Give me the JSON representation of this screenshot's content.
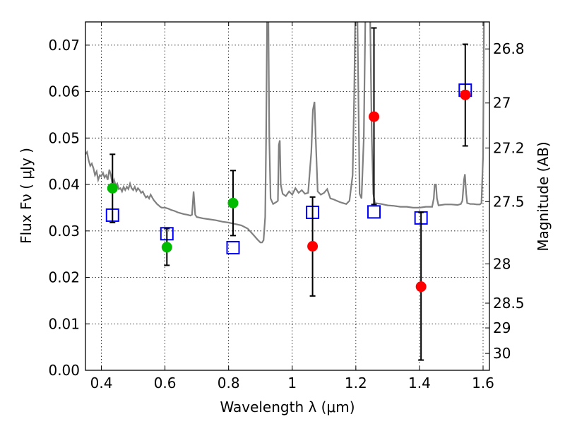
{
  "chart_data": {
    "type": "scatter",
    "title": "",
    "xlabel": "Wavelength  λ (μm)",
    "ylabel": "Flux  Fν  ( μJy )",
    "ylabel_right": "Magnitude (AB)",
    "xlim": [
      0.35,
      1.62
    ],
    "ylim": [
      0.0,
      0.075
    ],
    "grid": true,
    "x_ticks": [
      {
        "value": 0.4,
        "label": "0.4"
      },
      {
        "value": 0.6,
        "label": "0.6"
      },
      {
        "value": 0.8,
        "label": "0.8"
      },
      {
        "value": 1.0,
        "label": "1"
      },
      {
        "value": 1.2,
        "label": "1.2"
      },
      {
        "value": 1.4,
        "label": "1.4"
      },
      {
        "value": 1.6,
        "label": "1.6"
      }
    ],
    "y_ticks": [
      {
        "value": 0.0,
        "label": "0.00"
      },
      {
        "value": 0.01,
        "label": "0.01"
      },
      {
        "value": 0.02,
        "label": "0.02"
      },
      {
        "value": 0.03,
        "label": "0.03"
      },
      {
        "value": 0.04,
        "label": "0.04"
      },
      {
        "value": 0.05,
        "label": "0.05"
      },
      {
        "value": 0.06,
        "label": "0.06"
      },
      {
        "value": 0.07,
        "label": "0.07"
      }
    ],
    "right_ticks": [
      {
        "mag": 26.8,
        "label": "26.8"
      },
      {
        "mag": 27.0,
        "label": "27"
      },
      {
        "mag": 27.2,
        "label": "27.2"
      },
      {
        "mag": 27.5,
        "label": "27.5"
      },
      {
        "mag": 28.0,
        "label": "28"
      },
      {
        "mag": 28.5,
        "label": "28.5"
      },
      {
        "mag": 29.0,
        "label": "29"
      },
      {
        "mag": 30.0,
        "label": "30"
      }
    ],
    "colors": {
      "template": "#808080",
      "model": "#0000ff",
      "detected": "#00bb00",
      "nondetected": "#ff0000",
      "errorbar": "#000000"
    },
    "series": [
      {
        "marker": "circle-green",
        "points": [
          {
            "x": 0.435,
            "y": 0.0392,
            "lo": 0.0318,
            "hi": 0.0465
          },
          {
            "x": 0.606,
            "y": 0.0265,
            "lo": 0.0226,
            "hi": 0.0305
          },
          {
            "x": 0.814,
            "y": 0.036,
            "lo": 0.029,
            "hi": 0.043
          }
        ]
      },
      {
        "marker": "circle-red",
        "points": [
          {
            "x": 1.064,
            "y": 0.0267,
            "lo": 0.016,
            "hi": 0.0373
          },
          {
            "x": 1.257,
            "y": 0.0546,
            "lo": 0.0357,
            "hi": 0.0737
          },
          {
            "x": 1.405,
            "y": 0.018,
            "lo": 0.0022,
            "hi": 0.034
          },
          {
            "x": 1.544,
            "y": 0.0593,
            "lo": 0.0483,
            "hi": 0.0702
          }
        ]
      },
      {
        "marker": "square-blue",
        "points": [
          {
            "x": 0.435,
            "y": 0.0334
          },
          {
            "x": 0.606,
            "y": 0.0294
          },
          {
            "x": 0.814,
            "y": 0.0264
          },
          {
            "x": 1.064,
            "y": 0.034
          },
          {
            "x": 1.257,
            "y": 0.0341
          },
          {
            "x": 1.405,
            "y": 0.0328
          },
          {
            "x": 1.544,
            "y": 0.0603
          }
        ]
      }
    ],
    "template_spectrum": [
      [
        0.35,
        0.0465
      ],
      [
        0.355,
        0.047
      ],
      [
        0.36,
        0.0452
      ],
      [
        0.365,
        0.044
      ],
      [
        0.37,
        0.0445
      ],
      [
        0.375,
        0.0435
      ],
      [
        0.38,
        0.042
      ],
      [
        0.385,
        0.0428
      ],
      [
        0.39,
        0.041
      ],
      [
        0.395,
        0.042
      ],
      [
        0.4,
        0.0418
      ],
      [
        0.405,
        0.0425
      ],
      [
        0.41,
        0.0415
      ],
      [
        0.415,
        0.042
      ],
      [
        0.42,
        0.041
      ],
      [
        0.425,
        0.0432
      ],
      [
        0.43,
        0.042
      ],
      [
        0.435,
        0.04
      ],
      [
        0.44,
        0.041
      ],
      [
        0.445,
        0.0398
      ],
      [
        0.45,
        0.0402
      ],
      [
        0.455,
        0.039
      ],
      [
        0.46,
        0.0392
      ],
      [
        0.465,
        0.0385
      ],
      [
        0.47,
        0.0395
      ],
      [
        0.475,
        0.0388
      ],
      [
        0.48,
        0.0395
      ],
      [
        0.485,
        0.039
      ],
      [
        0.49,
        0.0402
      ],
      [
        0.495,
        0.0392
      ],
      [
        0.5,
        0.0388
      ],
      [
        0.505,
        0.0395
      ],
      [
        0.51,
        0.0386
      ],
      [
        0.515,
        0.0392
      ],
      [
        0.52,
        0.0388
      ],
      [
        0.525,
        0.0382
      ],
      [
        0.53,
        0.0385
      ],
      [
        0.535,
        0.0378
      ],
      [
        0.54,
        0.0372
      ],
      [
        0.545,
        0.0375
      ],
      [
        0.55,
        0.037
      ],
      [
        0.555,
        0.0378
      ],
      [
        0.56,
        0.0372
      ],
      [
        0.565,
        0.0366
      ],
      [
        0.57,
        0.0362
      ],
      [
        0.575,
        0.0358
      ],
      [
        0.58,
        0.0355
      ],
      [
        0.585,
        0.0352
      ],
      [
        0.59,
        0.035
      ],
      [
        0.6,
        0.035
      ],
      [
        0.61,
        0.0348
      ],
      [
        0.62,
        0.0345
      ],
      [
        0.63,
        0.0343
      ],
      [
        0.64,
        0.034
      ],
      [
        0.65,
        0.0338
      ],
      [
        0.66,
        0.0336
      ],
      [
        0.67,
        0.0335
      ],
      [
        0.68,
        0.0333
      ],
      [
        0.685,
        0.0335
      ],
      [
        0.69,
        0.0385
      ],
      [
        0.695,
        0.0335
      ],
      [
        0.7,
        0.033
      ],
      [
        0.72,
        0.0327
      ],
      [
        0.74,
        0.0325
      ],
      [
        0.76,
        0.0323
      ],
      [
        0.78,
        0.032
      ],
      [
        0.8,
        0.0318
      ],
      [
        0.82,
        0.0315
      ],
      [
        0.84,
        0.0312
      ],
      [
        0.86,
        0.0305
      ],
      [
        0.88,
        0.029
      ],
      [
        0.89,
        0.0282
      ],
      [
        0.9,
        0.0275
      ],
      [
        0.905,
        0.0275
      ],
      [
        0.91,
        0.028
      ],
      [
        0.915,
        0.033
      ],
      [
        0.918,
        0.05
      ],
      [
        0.921,
        0.076
      ],
      [
        0.925,
        0.076
      ],
      [
        0.928,
        0.05
      ],
      [
        0.932,
        0.037
      ],
      [
        0.94,
        0.0358
      ],
      [
        0.95,
        0.0362
      ],
      [
        0.955,
        0.0365
      ],
      [
        0.958,
        0.0485
      ],
      [
        0.961,
        0.0495
      ],
      [
        0.964,
        0.04
      ],
      [
        0.97,
        0.038
      ],
      [
        0.98,
        0.0375
      ],
      [
        0.99,
        0.0385
      ],
      [
        1.0,
        0.0378
      ],
      [
        1.01,
        0.0392
      ],
      [
        1.02,
        0.0382
      ],
      [
        1.03,
        0.0388
      ],
      [
        1.04,
        0.038
      ],
      [
        1.05,
        0.0382
      ],
      [
        1.06,
        0.047
      ],
      [
        1.065,
        0.056
      ],
      [
        1.07,
        0.0578
      ],
      [
        1.075,
        0.048
      ],
      [
        1.08,
        0.0385
      ],
      [
        1.09,
        0.0378
      ],
      [
        1.1,
        0.0382
      ],
      [
        1.11,
        0.039
      ],
      [
        1.12,
        0.037
      ],
      [
        1.13,
        0.0368
      ],
      [
        1.14,
        0.0365
      ],
      [
        1.15,
        0.0362
      ],
      [
        1.16,
        0.036
      ],
      [
        1.17,
        0.0358
      ],
      [
        1.18,
        0.0365
      ],
      [
        1.19,
        0.042
      ],
      [
        1.195,
        0.06
      ],
      [
        1.198,
        0.076
      ],
      [
        1.205,
        0.076
      ],
      [
        1.208,
        0.06
      ],
      [
        1.212,
        0.038
      ],
      [
        1.218,
        0.037
      ],
      [
        1.225,
        0.05
      ],
      [
        1.23,
        0.076
      ],
      [
        1.245,
        0.076
      ],
      [
        1.25,
        0.05
      ],
      [
        1.255,
        0.038
      ],
      [
        1.26,
        0.036
      ],
      [
        1.28,
        0.0358
      ],
      [
        1.3,
        0.0355
      ],
      [
        1.32,
        0.0354
      ],
      [
        1.34,
        0.0352
      ],
      [
        1.36,
        0.0352
      ],
      [
        1.38,
        0.035
      ],
      [
        1.4,
        0.035
      ],
      [
        1.42,
        0.0352
      ],
      [
        1.44,
        0.0352
      ],
      [
        1.445,
        0.037
      ],
      [
        1.448,
        0.04
      ],
      [
        1.452,
        0.04
      ],
      [
        1.455,
        0.037
      ],
      [
        1.46,
        0.0355
      ],
      [
        1.48,
        0.0357
      ],
      [
        1.5,
        0.0357
      ],
      [
        1.52,
        0.0356
      ],
      [
        1.53,
        0.0358
      ],
      [
        1.535,
        0.0365
      ],
      [
        1.54,
        0.041
      ],
      [
        1.543,
        0.0422
      ],
      [
        1.547,
        0.038
      ],
      [
        1.55,
        0.036
      ],
      [
        1.56,
        0.0358
      ],
      [
        1.57,
        0.0358
      ],
      [
        1.58,
        0.0357
      ],
      [
        1.59,
        0.0357
      ],
      [
        1.595,
        0.036
      ],
      [
        1.6,
        0.046
      ],
      [
        1.603,
        0.076
      ],
      [
        1.62,
        0.076
      ]
    ]
  }
}
